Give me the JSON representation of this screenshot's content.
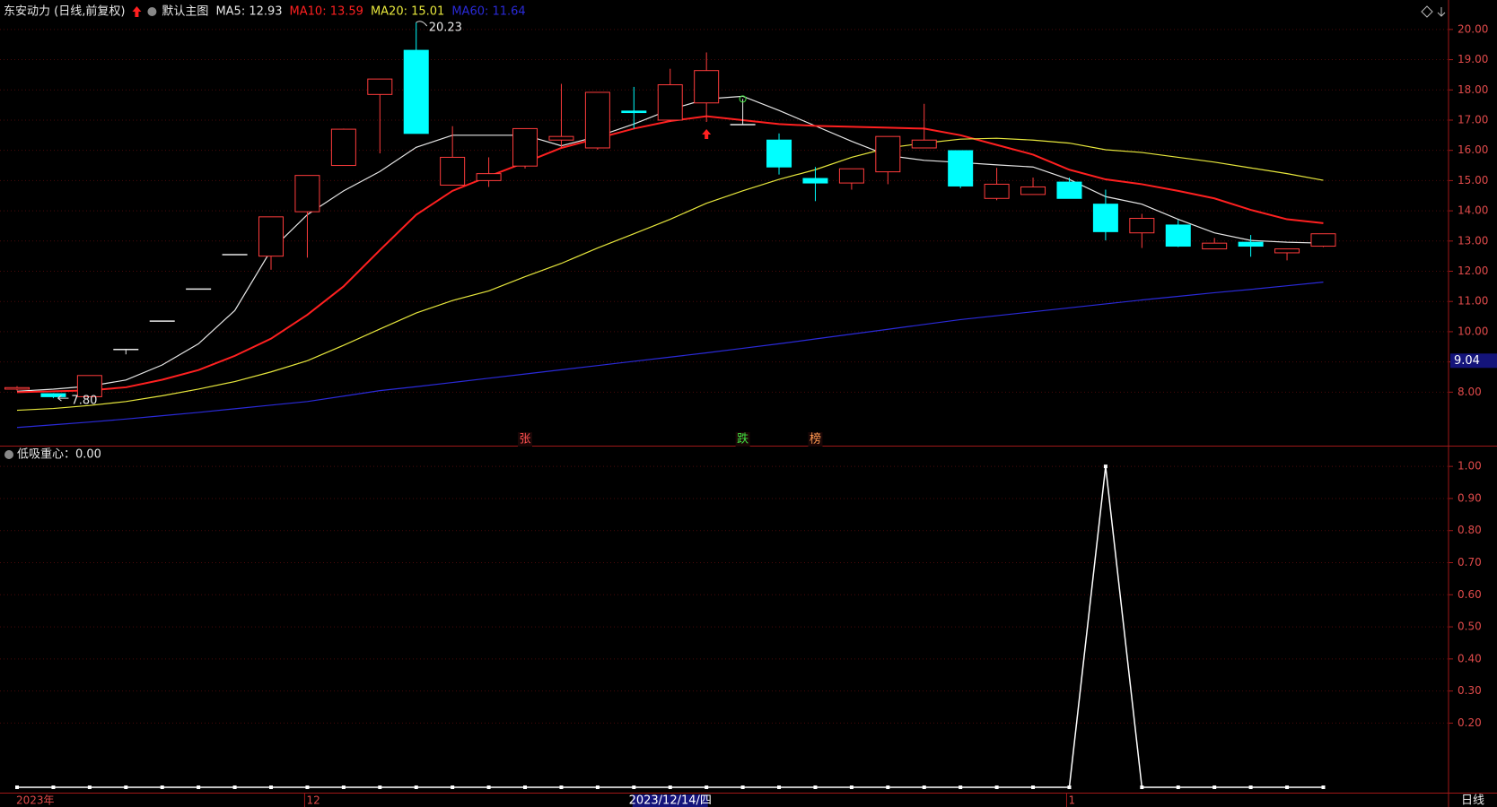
{
  "chart_data": [
    {
      "type": "candlestick",
      "title": "东安动力 (日线,前复权)",
      "subtitle": "默认主图",
      "period": "日线",
      "categories": [
        "2023年",
        null,
        null,
        null,
        null,
        null,
        null,
        null,
        "12",
        null,
        null,
        null,
        null,
        null,
        null,
        null,
        null,
        null,
        "2023/12/14/四",
        null,
        null,
        null,
        null,
        null,
        null,
        null,
        null,
        null,
        null,
        "1",
        null,
        null,
        null,
        null,
        null,
        null,
        null
      ],
      "open": [
        8.1,
        7.95,
        7.85,
        9.41,
        10.35,
        11.41,
        12.55,
        12.5,
        13.97,
        15.5,
        17.85,
        19.31,
        14.85,
        15.0,
        15.48,
        16.34,
        16.08,
        17.3,
        17.0,
        17.57,
        16.85,
        16.34,
        15.07,
        14.92,
        15.29,
        16.08,
        15.99,
        14.41,
        14.54,
        14.95,
        14.22,
        13.27,
        13.53,
        12.74,
        12.96,
        12.61,
        12.83
      ],
      "high": [
        8.2,
        7.97,
        8.55,
        9.42,
        10.35,
        11.41,
        12.55,
        13.8,
        15.17,
        16.72,
        18.36,
        20.23,
        16.8,
        15.77,
        16.72,
        18.2,
        17.92,
        18.1,
        18.7,
        19.24,
        17.7,
        16.56,
        15.45,
        15.39,
        16.46,
        17.54,
        15.99,
        15.42,
        15.1,
        15.1,
        14.7,
        13.9,
        13.7,
        13.1,
        13.2,
        12.74,
        13.24
      ],
      "low": [
        8.05,
        7.8,
        7.85,
        9.25,
        10.35,
        11.41,
        12.55,
        12.05,
        12.45,
        15.5,
        15.9,
        16.56,
        14.85,
        14.79,
        15.4,
        16.08,
        16.02,
        16.72,
        16.94,
        16.94,
        16.85,
        15.2,
        14.32,
        14.7,
        14.88,
        16.08,
        14.75,
        14.35,
        14.54,
        14.41,
        13.02,
        12.77,
        12.8,
        12.74,
        12.48,
        12.36,
        12.8
      ],
      "close": [
        8.15,
        7.85,
        8.55,
        9.41,
        10.35,
        11.41,
        12.55,
        13.8,
        15.17,
        16.7,
        18.36,
        16.56,
        15.77,
        15.23,
        16.72,
        16.46,
        17.92,
        17.25,
        18.17,
        18.64,
        16.85,
        15.45,
        14.92,
        15.39,
        16.46,
        16.34,
        14.82,
        14.88,
        14.79,
        14.41,
        13.31,
        13.75,
        12.83,
        12.93,
        12.83,
        12.74,
        13.24
      ],
      "up_color": "#ff3c3c",
      "down_color": "#00ffff",
      "flat_color": "#e8e8e8",
      "series": [
        {
          "name": "MA5: 12.93",
          "color": "#e6e6e6",
          "values": [
            8.03,
            8.1,
            8.2,
            8.4,
            8.9,
            9.6,
            10.7,
            12.7,
            13.87,
            14.66,
            15.3,
            16.1,
            16.5,
            16.5,
            16.5,
            16.15,
            16.46,
            16.87,
            17.35,
            17.7,
            17.79,
            17.32,
            16.81,
            16.3,
            15.83,
            15.67,
            15.6,
            15.52,
            15.45,
            15.04,
            14.47,
            14.22,
            13.72,
            13.27,
            13.02,
            12.96,
            12.93
          ]
        },
        {
          "name": "MA10: 13.59",
          "color": "#ff2020",
          "values": [
            8.0,
            8.03,
            8.06,
            8.16,
            8.41,
            8.73,
            9.2,
            9.77,
            10.56,
            11.5,
            12.7,
            13.87,
            14.66,
            15.14,
            15.6,
            16.08,
            16.4,
            16.72,
            16.97,
            17.13,
            17.0,
            16.87,
            16.81,
            16.78,
            16.75,
            16.72,
            16.5,
            16.18,
            15.86,
            15.36,
            15.04,
            14.88,
            14.66,
            14.41,
            14.03,
            13.72,
            13.59
          ]
        },
        {
          "name": "MA20: 15.01",
          "color": "#e6e63c",
          "values": [
            7.4,
            7.46,
            7.56,
            7.69,
            7.88,
            8.1,
            8.35,
            8.67,
            9.04,
            9.55,
            10.09,
            10.62,
            11.03,
            11.35,
            11.82,
            12.26,
            12.77,
            13.24,
            13.72,
            14.25,
            14.66,
            15.04,
            15.36,
            15.77,
            16.08,
            16.24,
            16.37,
            16.4,
            16.34,
            16.24,
            16.02,
            15.93,
            15.77,
            15.61,
            15.42,
            15.23,
            15.01
          ]
        },
        {
          "name": "MA60: 11.64",
          "color": "#2a2ad8",
          "values": [
            6.83,
            6.92,
            7.01,
            7.11,
            7.22,
            7.33,
            7.45,
            7.57,
            7.69,
            7.87,
            8.05,
            8.18,
            8.32,
            8.46,
            8.6,
            8.74,
            8.88,
            9.02,
            9.16,
            9.3,
            9.45,
            9.6,
            9.76,
            9.92,
            10.08,
            10.24,
            10.4,
            10.53,
            10.66,
            10.79,
            10.92,
            11.05,
            11.17,
            11.29,
            11.4,
            11.52,
            11.64
          ]
        }
      ],
      "high_label": 20.23,
      "low_label": {
        "value": 7.8,
        "label": "7.80"
      },
      "markers": [
        {
          "text": "张",
          "index": 14,
          "color": "#ff5050"
        },
        {
          "text": "跌",
          "index": 20,
          "color": "#40e040"
        },
        {
          "text": "榜",
          "index": 22,
          "color": "#ff9a50"
        }
      ],
      "cursor": {
        "value": 9.04,
        "index": 18
      },
      "ylim": [
        6.23,
        20.5
      ],
      "yticks": [
        {
          "value": 8,
          "label": "8.00"
        },
        {
          "value": 9,
          "label": "9.00"
        },
        {
          "value": 10,
          "label": "10.00"
        },
        {
          "value": 11,
          "label": "11.00"
        },
        {
          "value": 12,
          "label": "12.00"
        },
        {
          "value": 13,
          "label": "13.00"
        },
        {
          "value": 14,
          "label": "14.00"
        },
        {
          "value": 15,
          "label": "15.00"
        },
        {
          "value": 16,
          "label": "16.00"
        },
        {
          "value": 17,
          "label": "17.00"
        },
        {
          "value": 18,
          "label": "18.00"
        },
        {
          "value": 19,
          "label": "19.00"
        },
        {
          "value": 20,
          "label": "20.00"
        }
      ],
      "grid": true
    },
    {
      "type": "line",
      "title": "低吸重心：0.00",
      "color": "#ffffff",
      "values": [
        0,
        0,
        0,
        0,
        0,
        0,
        0,
        0,
        0,
        0,
        0,
        0,
        0,
        0,
        0,
        0,
        0,
        0,
        0,
        0,
        0,
        0,
        0,
        0,
        0,
        0,
        0,
        0,
        0,
        0,
        1,
        0,
        0,
        0,
        0,
        0,
        0
      ],
      "ylim": [
        0,
        1.02
      ],
      "yticks": [
        {
          "value": 0.2,
          "label": "0.20"
        },
        {
          "value": 0.3,
          "label": "0.30"
        },
        {
          "value": 0.4,
          "label": "0.40"
        },
        {
          "value": 0.5,
          "label": "0.50"
        },
        {
          "value": 0.6,
          "label": "0.60"
        },
        {
          "value": 0.7,
          "label": "0.70"
        },
        {
          "value": 0.8,
          "label": "0.80"
        },
        {
          "value": 0.9,
          "label": "0.90"
        },
        {
          "value": 1,
          "label": "1.00"
        }
      ],
      "grid": true
    }
  ]
}
